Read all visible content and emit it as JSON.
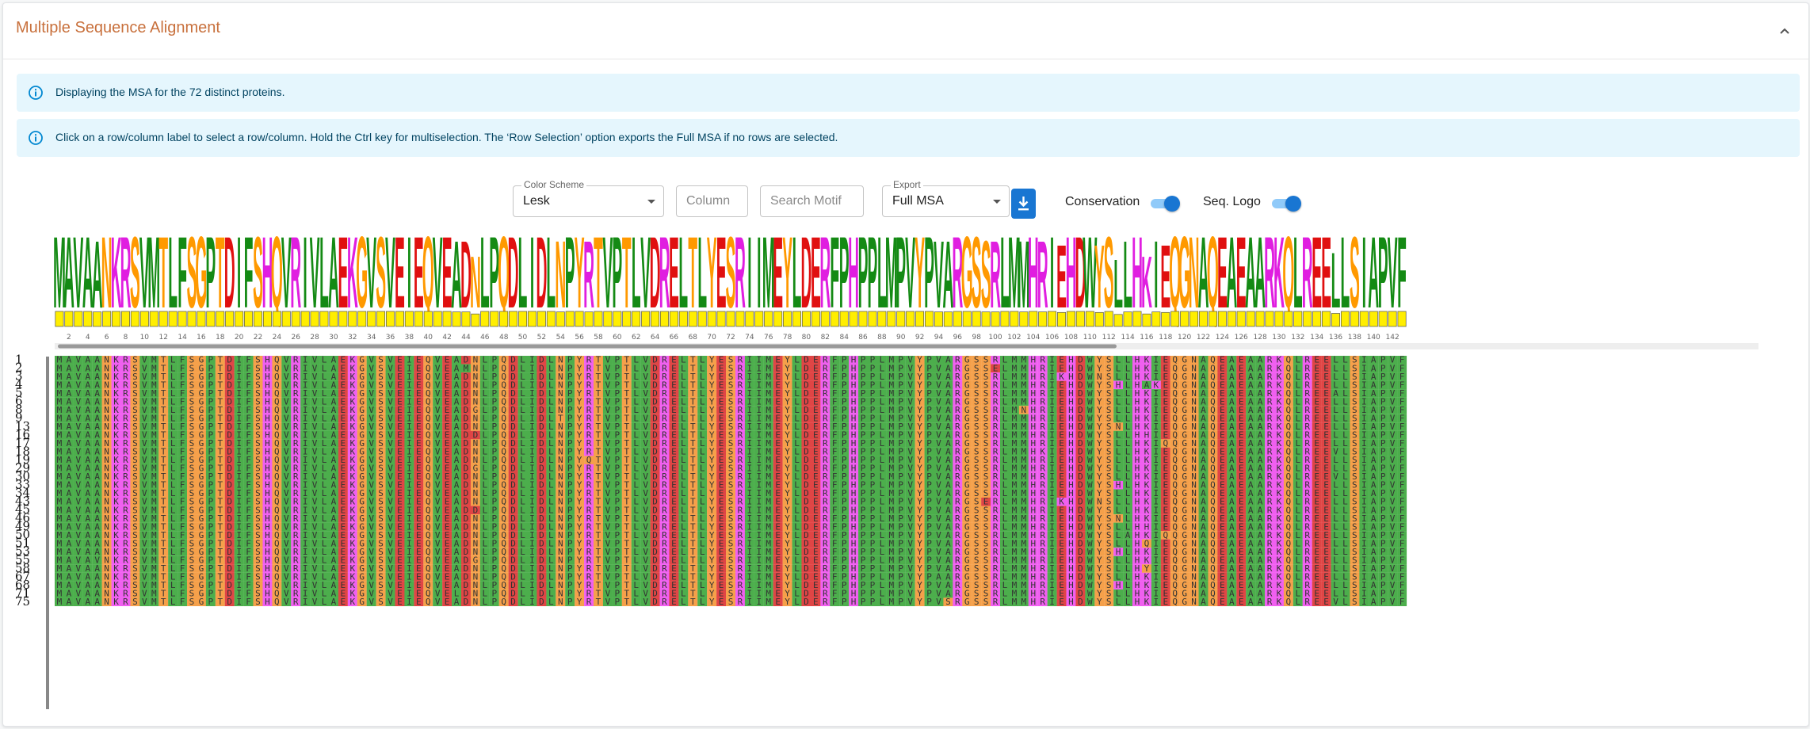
{
  "panel": {
    "title": "Multiple Sequence Alignment"
  },
  "alerts": [
    "Displaying the MSA for the 72 distinct proteins.",
    "Click on a row/column label to select a row/column. Hold the Ctrl key for multiselection. The ‘Row Selection’ option exports the Full MSA if no rows are selected."
  ],
  "controls": {
    "color_scheme": {
      "label": "Color Scheme",
      "value": "Lesk"
    },
    "column": {
      "placeholder": "Column"
    },
    "search_motif": {
      "placeholder": "Search Motif"
    },
    "export": {
      "label": "Export",
      "value": "Full MSA"
    },
    "conservation": {
      "label": "Conservation",
      "enabled": true
    },
    "seq_logo": {
      "label": "Seq. Logo",
      "enabled": true
    }
  },
  "msa": {
    "consensus": "MAVAANKRSVMTLFSGPTDIFSHQVRIVLAEKGVSVEIEQVEADNLPQDLIDLNPYRTVPTLVDRELTLYESRIIMEYLDERFPHPPLMPVYPVARGSSRLMMHRIEHDWYSLLHKIEQGNAQEAEAARKQLREELLSIAPVF",
    "row_labels": [
      "1",
      "2",
      "3",
      "4",
      "5",
      "6",
      "8",
      "9",
      "13",
      "16",
      "17",
      "18",
      "19",
      "29",
      "30",
      "33",
      "34",
      "43",
      "45",
      "46",
      "49",
      "50",
      "51",
      "53",
      "55",
      "58",
      "67",
      "68",
      "71",
      "75"
    ],
    "column_labels": [
      "2",
      "4",
      "6",
      "8",
      "10",
      "12",
      "14",
      "16",
      "18",
      "20",
      "22",
      "24",
      "26",
      "28",
      "30",
      "32",
      "34",
      "36",
      "38",
      "40",
      "42",
      "44",
      "46",
      "48",
      "50",
      "52",
      "54",
      "56",
      "58",
      "60",
      "62",
      "64",
      "66",
      "68",
      "70",
      "72",
      "74",
      "76",
      "78",
      "80",
      "82",
      "84",
      "86",
      "88",
      "90",
      "92",
      "94",
      "96",
      "98",
      "100",
      "102",
      "104",
      "106",
      "108",
      "110",
      "112",
      "114",
      "116",
      "118",
      "120",
      "122",
      "124",
      "126",
      "128",
      "130",
      "132",
      "134",
      "136",
      "138",
      "140",
      "142"
    ],
    "variants": [
      [],
      [
        [
          43,
          "M"
        ],
        [
          99,
          "E"
        ]
      ],
      [
        [
          106,
          "K"
        ],
        [
          110,
          "N"
        ]
      ],
      [
        [
          112,
          "H"
        ],
        [
          115,
          "A"
        ],
        [
          116,
          "K"
        ]
      ],
      [
        [
          135,
          "A"
        ]
      ],
      [],
      [
        [
          44,
          "G"
        ],
        [
          102,
          "N"
        ]
      ],
      [
        [
          53,
          "T"
        ]
      ],
      [
        [
          112,
          "N"
        ]
      ],
      [
        [
          44,
          "D"
        ],
        [
          115,
          "H"
        ]
      ],
      [
        [
          117,
          "Q"
        ]
      ],
      [
        [
          104,
          "K"
        ],
        [
          135,
          "V"
        ]
      ],
      [
        [
          56,
          "Q"
        ]
      ],
      [
        [
          44,
          "G"
        ]
      ],
      [
        [
          135,
          "V"
        ]
      ],
      [
        [
          112,
          "H"
        ]
      ],
      [
        [
          115,
          "K"
        ]
      ],
      [
        [
          98,
          "E"
        ],
        [
          106,
          "K"
        ],
        [
          110,
          "N"
        ]
      ],
      [
        [
          44,
          "D"
        ]
      ],
      [
        [
          112,
          "N"
        ]
      ],
      [
        [
          115,
          "H"
        ]
      ],
      [
        [
          113,
          "A"
        ],
        [
          117,
          "Q"
        ]
      ],
      [
        [
          115,
          "Q"
        ]
      ],
      [
        [
          112,
          "H"
        ]
      ],
      [
        [
          4,
          "V"
        ],
        [
          44,
          "G"
        ]
      ],
      [
        [
          115,
          "Y"
        ]
      ],
      [
        [
          93,
          "A"
        ]
      ],
      [
        [
          112,
          "H"
        ]
      ],
      [
        [
          42,
          "L"
        ],
        [
          56,
          "R"
        ]
      ],
      [
        [
          94,
          "S"
        ],
        [
          135,
          "V"
        ]
      ]
    ],
    "colors": {
      "orange": "#f5a04a",
      "magenta": "#f05ff0",
      "red": "#e04545",
      "green": "#4cae4c",
      "yellow": "#f7e05a",
      "logo_orange": "#ff9900",
      "logo_magenta": "#e01ee0",
      "logo_red": "#e01010",
      "logo_green": "#148a14",
      "logo_yellow": "#e6c800",
      "conservation_bar": "#ffee00",
      "scrollbar": "#999999",
      "accent": "#1976d2"
    }
  }
}
